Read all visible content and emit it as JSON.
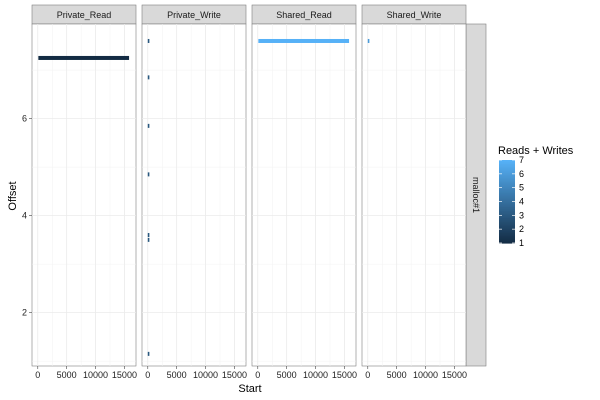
{
  "chart_data": {
    "type": "scatter",
    "panels": [
      "Private_Read",
      "Private_Write",
      "Shared_Read",
      "Shared_Write"
    ],
    "row_strip": "malloc#1",
    "xlabel": "Start",
    "ylabel": "Offset",
    "xlim": [
      -1000,
      17000
    ],
    "ylim": [
      0.9,
      7.95
    ],
    "x_ticks": [
      0,
      5000,
      10000,
      15000
    ],
    "y_ticks": [
      2,
      4,
      6
    ],
    "grid": true,
    "legend": {
      "title": "Reads + Writes",
      "position": "right",
      "levels": [
        1,
        2,
        3,
        4,
        5,
        6,
        7
      ],
      "color_low": "#132B43",
      "color_high": "#56B1F7"
    },
    "segments": [
      {
        "panel": "Private_Read",
        "x_start": 100,
        "x_end": 15800,
        "y": 7.25,
        "value": 1
      },
      {
        "panel": "Private_Write",
        "x_start": 0,
        "x_end": 120,
        "y": 7.6,
        "value": 3
      },
      {
        "panel": "Private_Write",
        "x_start": 0,
        "x_end": 120,
        "y": 6.85,
        "value": 3
      },
      {
        "panel": "Private_Write",
        "x_start": 0,
        "x_end": 120,
        "y": 5.85,
        "value": 3
      },
      {
        "panel": "Private_Write",
        "x_start": 0,
        "x_end": 120,
        "y": 4.85,
        "value": 3
      },
      {
        "panel": "Private_Write",
        "x_start": 0,
        "x_end": 120,
        "y": 3.6,
        "value": 3
      },
      {
        "panel": "Private_Write",
        "x_start": 0,
        "x_end": 120,
        "y": 3.5,
        "value": 3
      },
      {
        "panel": "Private_Write",
        "x_start": 0,
        "x_end": 120,
        "y": 1.15,
        "value": 3
      },
      {
        "panel": "Shared_Read",
        "x_start": 100,
        "x_end": 15800,
        "y": 7.6,
        "value": 7
      },
      {
        "panel": "Shared_Write",
        "x_start": 0,
        "x_end": 40,
        "y": 7.6,
        "value": 6
      }
    ]
  }
}
